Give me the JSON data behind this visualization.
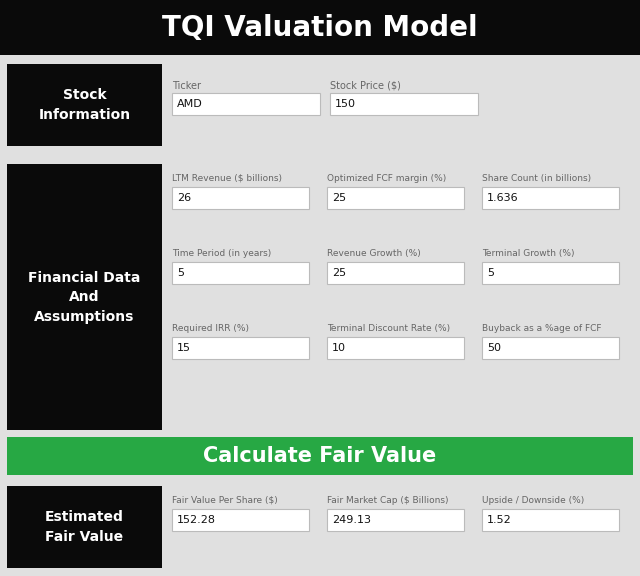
{
  "title": "TQI Valuation Model",
  "title_bg": "#0a0a0a",
  "title_color": "#ffffff",
  "title_fontsize": 20,
  "section_bg": "#0a0a0a",
  "section_text_color": "#ffffff",
  "outer_bg": "#e0e0e0",
  "input_bg": "#ffffff",
  "input_border": "#bbbbbb",
  "label_color": "#666666",
  "value_color": "#111111",
  "green_btn_bg": "#27a844",
  "green_btn_text": "#ffffff",
  "sections": [
    {
      "label": "Stock\nInformation",
      "fields": [
        [
          {
            "label": "Ticker",
            "value": "AMD"
          },
          {
            "label": "Stock Price ($)",
            "value": "150"
          }
        ]
      ]
    },
    {
      "label": "Financial Data\nAnd\nAssumptions",
      "fields": [
        [
          {
            "label": "LTM Revenue ($ billions)",
            "value": "26"
          },
          {
            "label": "Optimized FCF margin (%)",
            "value": "25"
          },
          {
            "label": "Share Count (in billions)",
            "value": "1.636"
          }
        ],
        [
          {
            "label": "Time Period (in years)",
            "value": "5"
          },
          {
            "label": "Revenue Growth (%)",
            "value": "25"
          },
          {
            "label": "Terminal Growth (%)",
            "value": "5"
          }
        ],
        [
          {
            "label": "Required IRR (%)",
            "value": "15"
          },
          {
            "label": "Terminal Discount Rate (%)",
            "value": "10"
          },
          {
            "label": "Buyback as a %age of FCF",
            "value": "50"
          }
        ]
      ]
    }
  ],
  "button_label": "Calculate Fair Value",
  "result_section": {
    "label": "Estimated\nFair Value",
    "fields": [
      [
        {
          "label": "Fair Value Per Share ($)",
          "value": "152.28"
        },
        {
          "label": "Fair Market Cap ($ Billions)",
          "value": "249.13"
        },
        {
          "label": "Upside / Downside (%)",
          "value": "1.52"
        }
      ]
    ]
  }
}
